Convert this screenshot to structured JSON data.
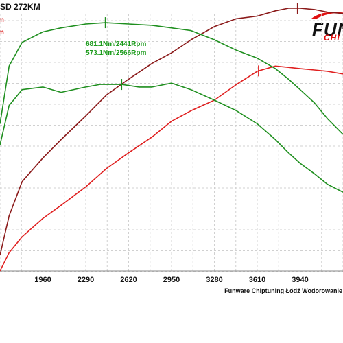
{
  "chart_data": {
    "type": "line",
    "title": "SD 272KM",
    "xlabel": "",
    "ylabel": "",
    "xlim": [
      1630,
      4270
    ],
    "ylim": [
      0,
      100
    ],
    "x_ticks": [
      1960,
      2290,
      2620,
      2950,
      3280,
      3610,
      3940
    ],
    "grid": true,
    "footer": "Funware Chiptuning Łódź Wodorowanie",
    "logo": {
      "main": "FUN",
      "sub": "CHI"
    },
    "legend_entries": [
      {
        "label": "m",
        "color": "#e02020"
      },
      {
        "label": "m",
        "color": "#e02020"
      }
    ],
    "annotations": [
      {
        "text": "681.1Nm/2441Rpm",
        "x": 2441,
        "color": "#1a9a1a"
      },
      {
        "text": "573.1Nm/2566Rpm",
        "x": 2566,
        "color": "#1a9a1a"
      }
    ],
    "series": [
      {
        "color": "#8b1a1a",
        "x": [
          1630,
          1700,
          1800,
          1960,
          2100,
          2290,
          2450,
          2620,
          2800,
          2950,
          3100,
          3280,
          3450,
          3610,
          3750,
          3850,
          3940,
          4050,
          4150,
          4270
        ],
        "y": [
          6,
          21,
          34,
          43,
          50,
          59,
          67,
          73,
          79,
          83,
          88,
          93,
          96,
          97,
          99,
          100,
          100,
          99.5,
          98.5,
          98
        ],
        "markers": [
          3920
        ]
      },
      {
        "color": "#e02020",
        "x": [
          1630,
          1700,
          1800,
          1960,
          2100,
          2290,
          2450,
          2620,
          2800,
          2950,
          3100,
          3280,
          3450,
          3610,
          3750,
          3850,
          3940,
          4050,
          4150,
          4270
        ],
        "y": [
          0,
          7,
          13,
          20,
          25,
          32,
          39,
          45,
          51,
          57,
          61,
          65,
          71,
          76,
          78,
          77.5,
          77,
          76.5,
          76,
          75
        ],
        "markers": [
          3620
        ]
      },
      {
        "color": "#1f8f1f",
        "x": [
          1630,
          1700,
          1800,
          1960,
          2100,
          2290,
          2441,
          2620,
          2800,
          2950,
          3100,
          3280,
          3450,
          3610,
          3750,
          3850,
          3940,
          4050,
          4150,
          4270
        ],
        "y": [
          56,
          78,
          87,
          91,
          92.5,
          94,
          94.5,
          94,
          93.5,
          92.5,
          91.5,
          88,
          84,
          81,
          77,
          73,
          69,
          64,
          58,
          52
        ],
        "markers": [
          2441
        ]
      },
      {
        "color": "#1f8f1f",
        "x": [
          1630,
          1700,
          1800,
          1960,
          2100,
          2290,
          2400,
          2566,
          2700,
          2800,
          2950,
          3100,
          3280,
          3450,
          3610,
          3750,
          3850,
          3940,
          4050,
          4150,
          4270
        ],
        "y": [
          48,
          63,
          69,
          70,
          68,
          70,
          71,
          71,
          70,
          70,
          71.5,
          69,
          65,
          61,
          56,
          50,
          45,
          41,
          37,
          33,
          30
        ],
        "markers": [
          2566
        ]
      }
    ]
  }
}
